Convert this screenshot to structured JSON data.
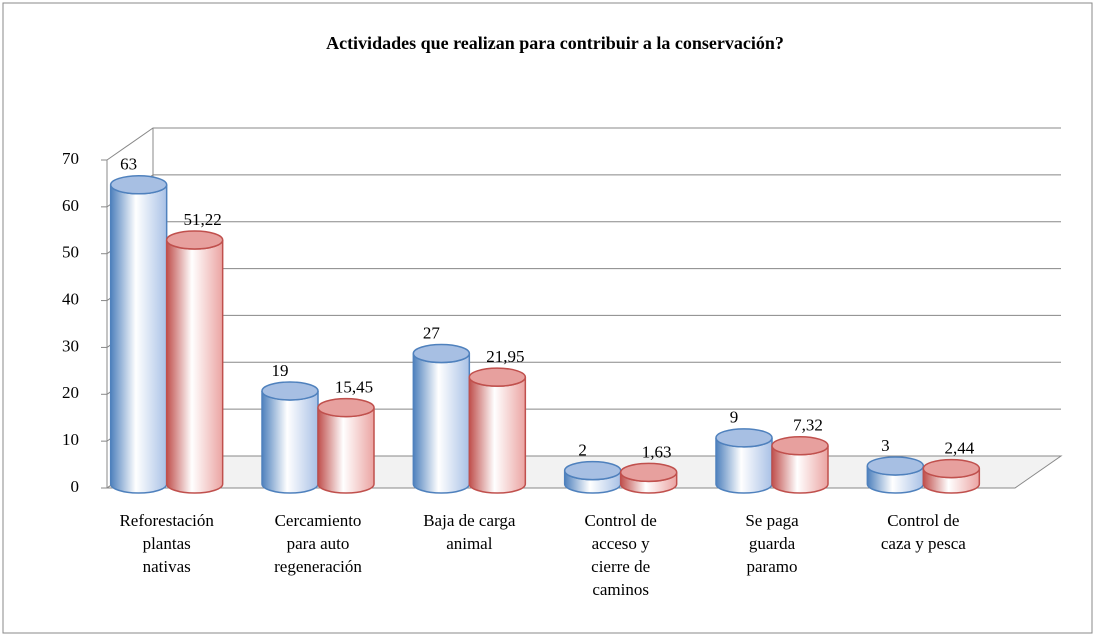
{
  "chart_data": {
    "type": "bar3d",
    "title": "Actividades que realizan para contribuir a la conservación?",
    "categories": [
      "Reforestación\nplantas\nnativas",
      "Cercamiento\npara auto\nregeneración",
      "Baja de carga\nanimal",
      "Control de\nacceso y\ncierre de\ncaminos",
      "Se paga\nguarda\nparamo",
      "Control de\ncaza y pesca"
    ],
    "series": [
      {
        "color": "#4f81bd",
        "values": [
          63,
          19,
          27,
          2,
          9,
          3
        ]
      },
      {
        "color": "#c0504d",
        "values": [
          51.22,
          15.45,
          21.95,
          1.63,
          7.32,
          2.44
        ],
        "value_labels": [
          "51,22",
          "15,45",
          "21,95",
          "1,63",
          "7,32",
          "2,44"
        ]
      }
    ],
    "ylim": [
      0,
      70
    ],
    "yticks": [
      0,
      10,
      20,
      30,
      40,
      50,
      60,
      70
    ],
    "grid": true
  }
}
